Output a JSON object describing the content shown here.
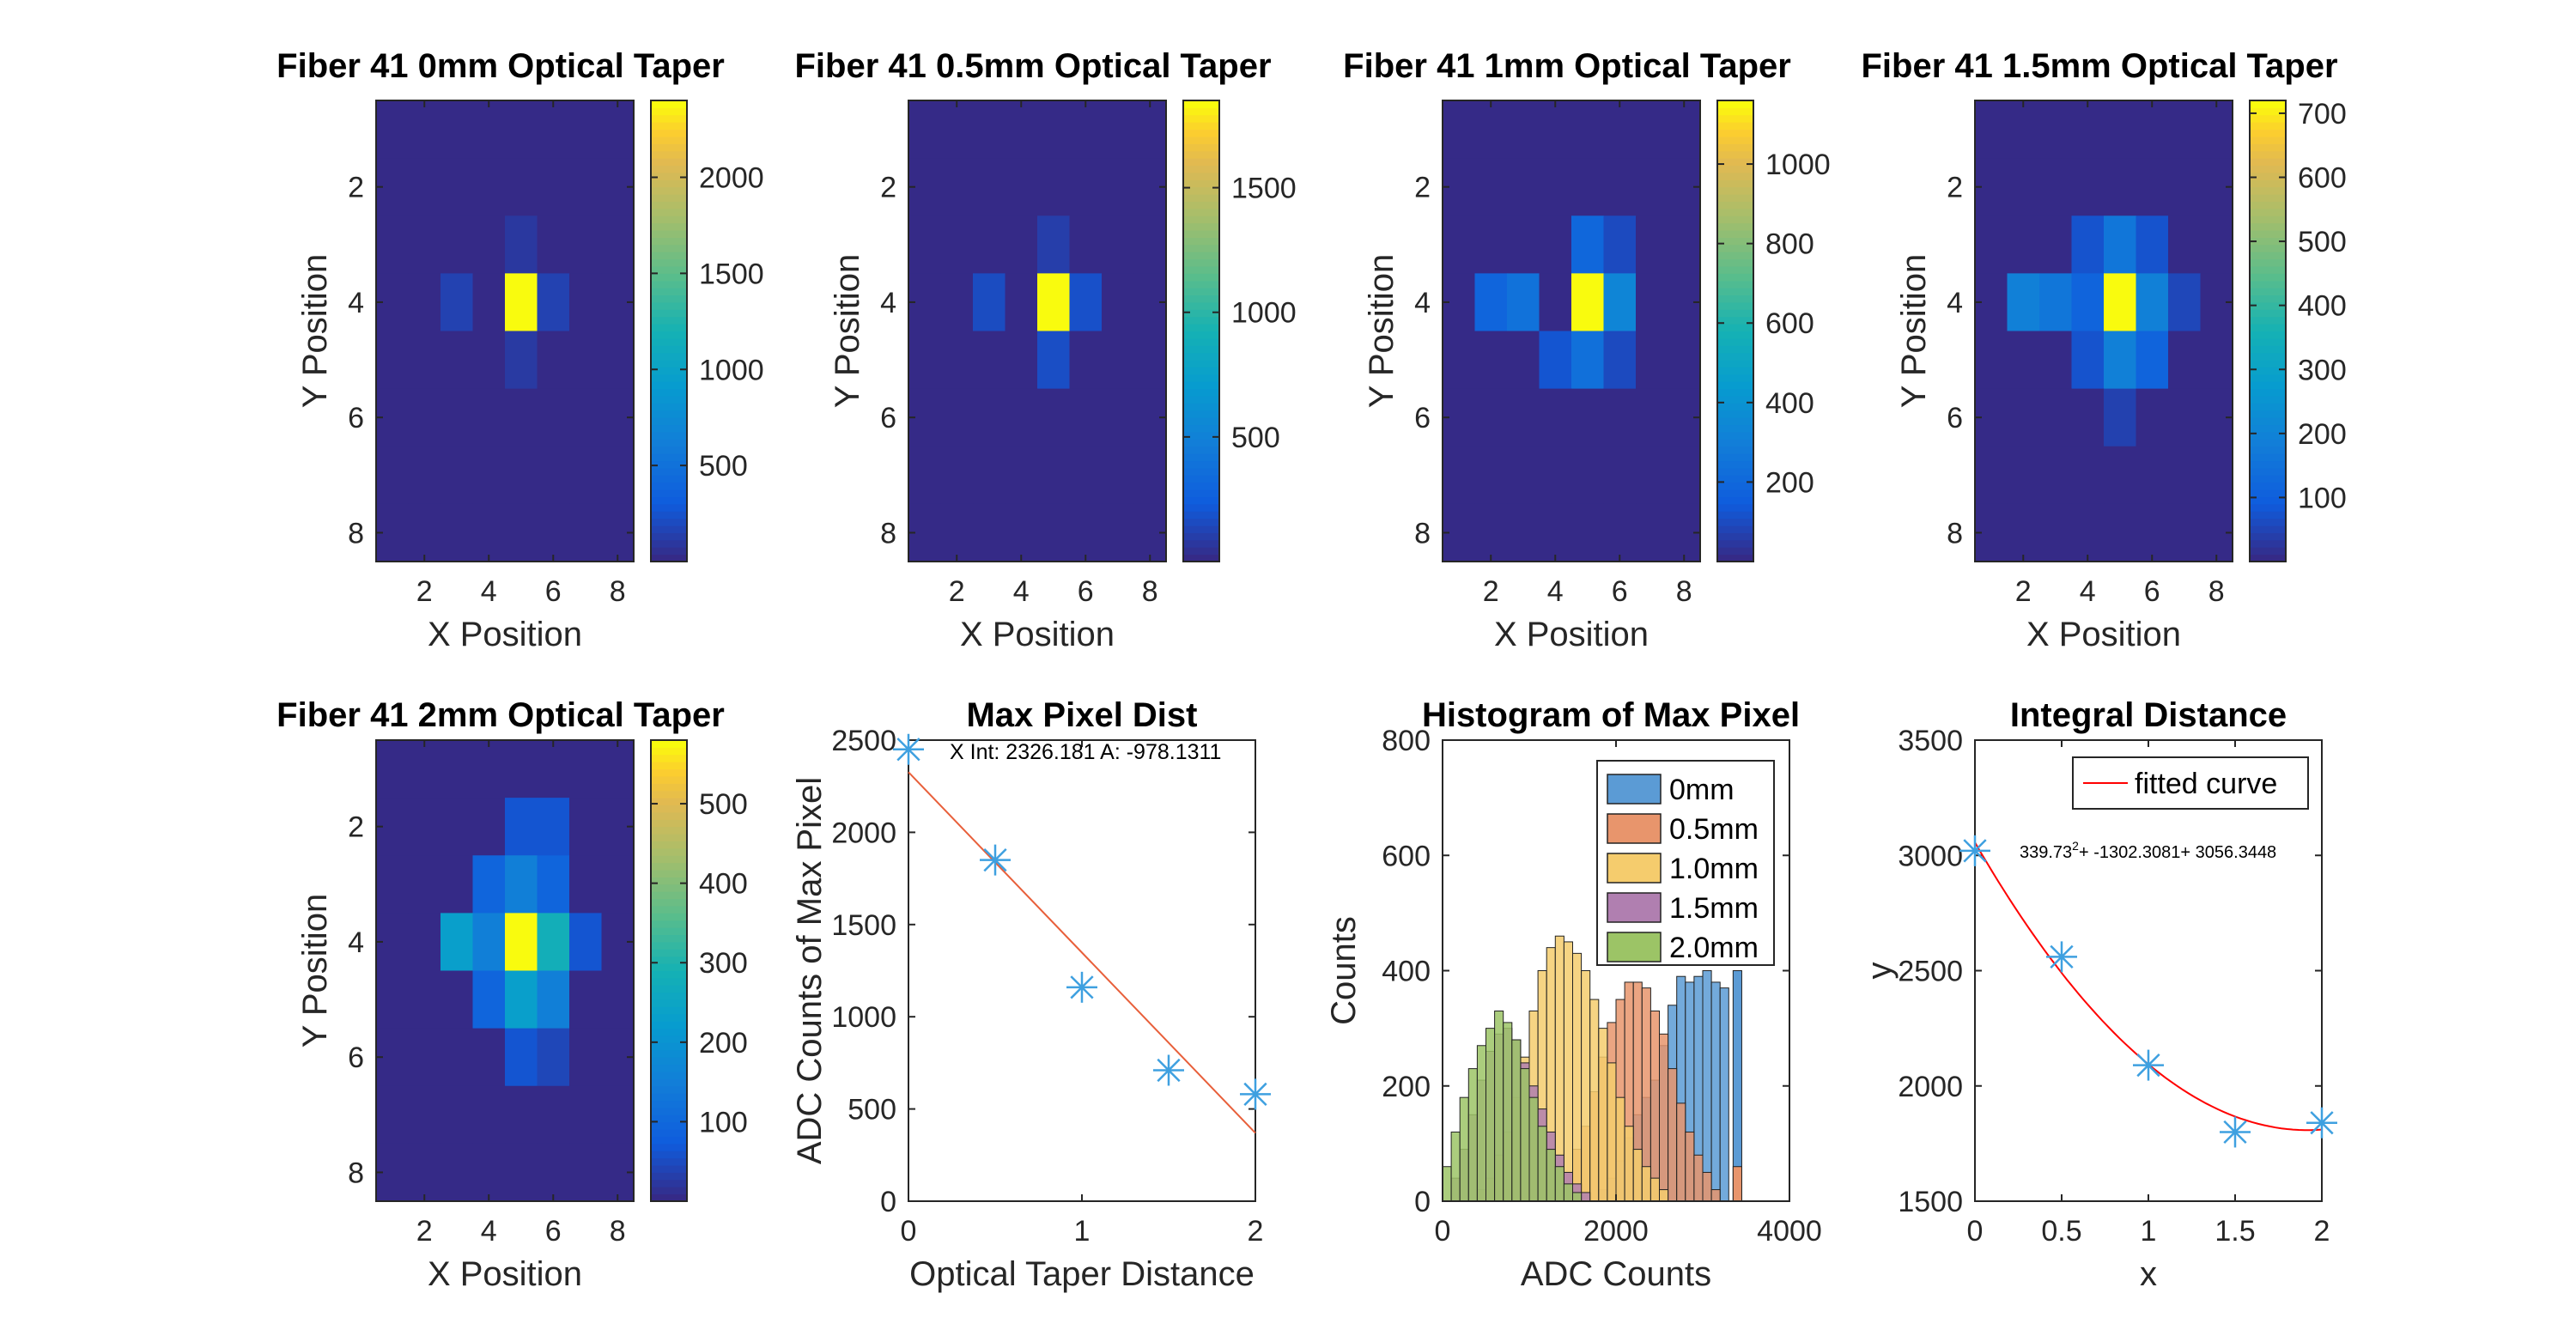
{
  "chart_data": [
    {
      "type": "heatmap",
      "title": "Fiber 41 0mm Optical Taper",
      "xlabel": "X Position",
      "ylabel": "Y Position",
      "xticks": [
        "2",
        "4",
        "6",
        "8"
      ],
      "yticks": [
        "2",
        "4",
        "6",
        "8"
      ],
      "colorbar_ticks": [
        "500",
        "1000",
        "1500",
        "2000"
      ],
      "clim": [
        0,
        2400
      ],
      "z": [
        [
          0,
          0,
          0,
          0,
          0,
          0,
          0,
          0
        ],
        [
          0,
          0,
          0,
          0,
          0,
          0,
          0,
          0
        ],
        [
          0,
          0,
          0,
          0,
          80,
          0,
          0,
          0
        ],
        [
          0,
          0,
          140,
          0,
          2400,
          140,
          0,
          0
        ],
        [
          0,
          0,
          0,
          0,
          90,
          0,
          0,
          0
        ],
        [
          0,
          0,
          0,
          0,
          0,
          0,
          0,
          0
        ],
        [
          0,
          0,
          0,
          0,
          0,
          0,
          0,
          0
        ],
        [
          0,
          0,
          0,
          0,
          0,
          0,
          0,
          0
        ]
      ]
    },
    {
      "type": "heatmap",
      "title": "Fiber 41 0.5mm Optical Taper",
      "xlabel": "X Position",
      "ylabel": "Y Position",
      "xticks": [
        "2",
        "4",
        "6",
        "8"
      ],
      "yticks": [
        "2",
        "4",
        "6",
        "8"
      ],
      "colorbar_ticks": [
        "500",
        "1000",
        "1500"
      ],
      "clim": [
        0,
        1850
      ],
      "z": [
        [
          0,
          0,
          0,
          0,
          0,
          0,
          0,
          0
        ],
        [
          0,
          0,
          0,
          0,
          0,
          0,
          0,
          0
        ],
        [
          0,
          0,
          0,
          0,
          90,
          0,
          0,
          0
        ],
        [
          0,
          0,
          150,
          0,
          1850,
          170,
          0,
          0
        ],
        [
          0,
          0,
          0,
          0,
          160,
          0,
          0,
          0
        ],
        [
          0,
          0,
          0,
          0,
          0,
          0,
          0,
          0
        ],
        [
          0,
          0,
          0,
          0,
          0,
          0,
          0,
          0
        ],
        [
          0,
          0,
          0,
          0,
          0,
          0,
          0,
          0
        ]
      ]
    },
    {
      "type": "heatmap",
      "title": "Fiber 41 1mm Optical Taper",
      "xlabel": "X Position",
      "ylabel": "Y Position",
      "xticks": [
        "2",
        "4",
        "6",
        "8"
      ],
      "yticks": [
        "2",
        "4",
        "6",
        "8"
      ],
      "colorbar_ticks": [
        "200",
        "400",
        "600",
        "800",
        "1000"
      ],
      "clim": [
        0,
        1160
      ],
      "z": [
        [
          0,
          0,
          0,
          0,
          0,
          0,
          0,
          0
        ],
        [
          0,
          0,
          0,
          0,
          0,
          0,
          0,
          0
        ],
        [
          0,
          0,
          0,
          0,
          190,
          90,
          0,
          0
        ],
        [
          0,
          180,
          240,
          0,
          1160,
          330,
          0,
          0
        ],
        [
          0,
          0,
          0,
          120,
          230,
          90,
          0,
          0
        ],
        [
          0,
          0,
          0,
          0,
          0,
          0,
          0,
          0
        ],
        [
          0,
          0,
          0,
          0,
          0,
          0,
          0,
          0
        ],
        [
          0,
          0,
          0,
          0,
          0,
          0,
          0,
          0
        ]
      ]
    },
    {
      "type": "heatmap",
      "title": "Fiber 41 1.5mm Optical Taper",
      "xlabel": "X Position",
      "ylabel": "Y Position",
      "xticks": [
        "2",
        "4",
        "6",
        "8"
      ],
      "yticks": [
        "2",
        "4",
        "6",
        "8"
      ],
      "colorbar_ticks": [
        "100",
        "200",
        "300",
        "400",
        "500",
        "600",
        "700"
      ],
      "clim": [
        0,
        720
      ],
      "z": [
        [
          0,
          0,
          0,
          0,
          0,
          0,
          0,
          0
        ],
        [
          0,
          0,
          0,
          0,
          0,
          0,
          0,
          0
        ],
        [
          0,
          0,
          0,
          70,
          160,
          70,
          0,
          0
        ],
        [
          0,
          190,
          160,
          110,
          720,
          190,
          50,
          0
        ],
        [
          0,
          0,
          0,
          70,
          190,
          110,
          0,
          0
        ],
        [
          0,
          0,
          0,
          0,
          40,
          0,
          0,
          0
        ],
        [
          0,
          0,
          0,
          0,
          0,
          0,
          0,
          0
        ],
        [
          0,
          0,
          0,
          0,
          0,
          0,
          0,
          0
        ]
      ]
    },
    {
      "type": "heatmap",
      "title": "Fiber 41 2mm Optical Taper",
      "xlabel": "X Position",
      "ylabel": "Y Position",
      "xticks": [
        "2",
        "4",
        "6",
        "8"
      ],
      "yticks": [
        "2",
        "4",
        "6",
        "8"
      ],
      "colorbar_ticks": [
        "100",
        "200",
        "300",
        "400",
        "500"
      ],
      "clim": [
        0,
        580
      ],
      "z": [
        [
          0,
          0,
          0,
          0,
          0,
          0,
          0,
          0
        ],
        [
          0,
          0,
          0,
          0,
          60,
          60,
          0,
          0
        ],
        [
          0,
          0,
          0,
          90,
          150,
          90,
          0,
          0
        ],
        [
          0,
          0,
          230,
          150,
          580,
          280,
          60,
          0
        ],
        [
          0,
          0,
          0,
          90,
          230,
          150,
          0,
          0
        ],
        [
          0,
          0,
          0,
          0,
          60,
          40,
          0,
          0
        ],
        [
          0,
          0,
          0,
          0,
          0,
          0,
          0,
          0
        ],
        [
          0,
          0,
          0,
          0,
          0,
          0,
          0,
          0
        ]
      ]
    },
    {
      "type": "scatter",
      "title": "Max Pixel Dist",
      "xlabel": "Optical Taper Distance",
      "ylabel": "ADC Counts of Max Pixel",
      "xlim": [
        0,
        2
      ],
      "ylim": [
        0,
        2500
      ],
      "xticks": [
        "0",
        "1",
        "2"
      ],
      "yticks": [
        "0",
        "500",
        "1000",
        "1500",
        "2000",
        "2500"
      ],
      "x": [
        0,
        0.5,
        1,
        1.5,
        2
      ],
      "y": [
        2450,
        1850,
        1160,
        710,
        580
      ],
      "fit": {
        "x": [
          0,
          2
        ],
        "y": [
          2326.181,
          369.919
        ]
      },
      "annotation": "X Int: 2326.181 A: -978.1311"
    },
    {
      "type": "histogram",
      "title": "Histogram of Max Pixel",
      "xlabel": "ADC Counts",
      "ylabel": "Counts",
      "xlim": [
        0,
        4000
      ],
      "ylim": [
        0,
        800
      ],
      "xticks": [
        "0",
        "2000",
        "4000"
      ],
      "yticks": [
        "0",
        "200",
        "400",
        "600",
        "800"
      ],
      "bin_width": 100,
      "series": [
        {
          "name": "0mm",
          "color": "#5b9bd5",
          "x0": 1800,
          "counts": [
            20,
            40,
            70,
            110,
            150,
            180,
            210,
            270,
            340,
            390,
            380,
            390,
            400,
            380,
            370,
            0,
            0,
            0,
            0,
            0,
            0,
            0,
            0,
            0,
            0,
            0,
            0,
            0,
            0,
            0,
            0,
            0,
            0,
            0,
            0,
            0,
            0,
            0,
            0,
            0,
            0,
            0,
            0,
            0,
            0,
            0,
            0,
            0,
            0,
            0,
            0,
            0,
            0,
            0,
            0,
            0,
            0,
            0,
            0,
            0
          ]
        },
        {
          "name": "0.5mm",
          "color": "#e8956c",
          "x0": 1300,
          "counts": [
            30,
            50,
            90,
            130,
            190,
            250,
            310,
            350,
            380,
            380,
            370,
            330,
            290,
            230,
            170,
            120,
            80,
            50,
            20
          ]
        },
        {
          "name": "1.0mm",
          "color": "#f5cc6d",
          "x0": 400,
          "counts": [
            20,
            40,
            80,
            120,
            180,
            250,
            330,
            400,
            440,
            460,
            450,
            430,
            400,
            350,
            300,
            240,
            180,
            130,
            90,
            60,
            40,
            20
          ]
        },
        {
          "name": "1.5mm",
          "color": "#b07fb0",
          "x0": 100,
          "counts": [
            40,
            90,
            150,
            210,
            260,
            290,
            300,
            280,
            240,
            200,
            160,
            120,
            80,
            50,
            30,
            15
          ]
        },
        {
          "name": "2.0mm",
          "color": "#9cc466",
          "x0": 0,
          "counts": [
            60,
            120,
            180,
            230,
            270,
            300,
            330,
            310,
            280,
            230,
            180,
            130,
            90,
            60,
            30,
            15
          ]
        }
      ],
      "spike": {
        "x": 3350,
        "count": 400,
        "gap_from": 3250,
        "bottom_only_x": 3350,
        "bottom_count": 60
      }
    },
    {
      "type": "scatter",
      "title": "Integral Distance",
      "xlabel": "x",
      "ylabel": "y",
      "xlim": [
        0,
        2
      ],
      "ylim": [
        1500,
        3500
      ],
      "xticks": [
        "0",
        "0.5",
        "1",
        "1.5",
        "2"
      ],
      "yticks": [
        "1500",
        "2000",
        "2500",
        "3000",
        "3500"
      ],
      "x": [
        0,
        0.5,
        1,
        1.5,
        2
      ],
      "y": [
        3020,
        2560,
        2090,
        1800,
        1840
      ],
      "fit_coefficients": [
        339.73,
        -1302.3081,
        3056.3448
      ],
      "legend": "fitted curve",
      "annotation": "339.73",
      "annotation_sup": "2",
      "annotation_rest": "+ -1302.3081+ 3056.3448"
    }
  ],
  "colors": {
    "parula_low": "#352a87",
    "parula_high": "#f9fb0e",
    "marker": "#3ea0e0",
    "fit_line": "#e85f3a",
    "fit_curve": "#ff0000"
  }
}
